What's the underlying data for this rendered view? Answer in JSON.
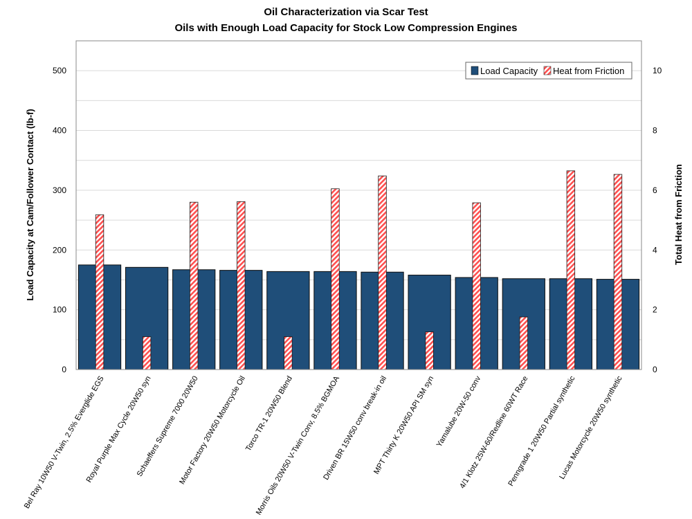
{
  "chart_data": {
    "type": "bar",
    "title": [
      "Oil Characterization via Scar Test",
      "Oils with Enough Load Capacity for Stock Low Compression Engines"
    ],
    "ylabel": "Load Capacity at Cam/Follower Contact (lb-f)",
    "y2label": "Total Heat from Friction",
    "ylim": [
      0,
      550
    ],
    "y2lim": [
      0,
      11
    ],
    "yticks": [
      0,
      100,
      200,
      300,
      400,
      500
    ],
    "y2ticks": [
      0,
      2,
      4,
      6,
      8,
      10
    ],
    "grid": true,
    "legend_position": "top-right",
    "categories": [
      "Bel Ray 10W50 V-Twin, 2.5% Everglide EGS",
      "Royal Purple Max Cycle 20W50 syn",
      "Schaeffers Supreme 7000 20W50",
      "Motor Factory 20W50 Motorcycle Oil",
      "Torco TR-1 20W50 Blend",
      "Morris Oils 20W50 V-Twin Conv, 8.5% BGMOA",
      "Driven BR 15W50 conv break-in oil",
      "MPT Thirty K 20W50 API SM syn",
      "Yamalube 20W-50 conv",
      "4/1 Klotz 25W-60/Redline 60WT Race",
      "Penngrade 1 20W50 Partial synthetic",
      "Lucas Motorcycle 20W50 synthetic"
    ],
    "series": [
      {
        "name": "Load Capacity",
        "axis": "left",
        "color": "#1f4e79",
        "values": [
          175,
          171,
          167,
          166,
          164,
          164,
          163,
          158,
          154,
          152,
          152,
          151
        ]
      },
      {
        "name": "Heat from Friction",
        "axis": "right",
        "color": "#ff5050",
        "pattern": "diagonal-hatch",
        "values": [
          5.18,
          1.1,
          5.6,
          5.62,
          1.1,
          6.05,
          6.48,
          1.26,
          5.58,
          1.76,
          6.65,
          6.53
        ]
      }
    ]
  }
}
